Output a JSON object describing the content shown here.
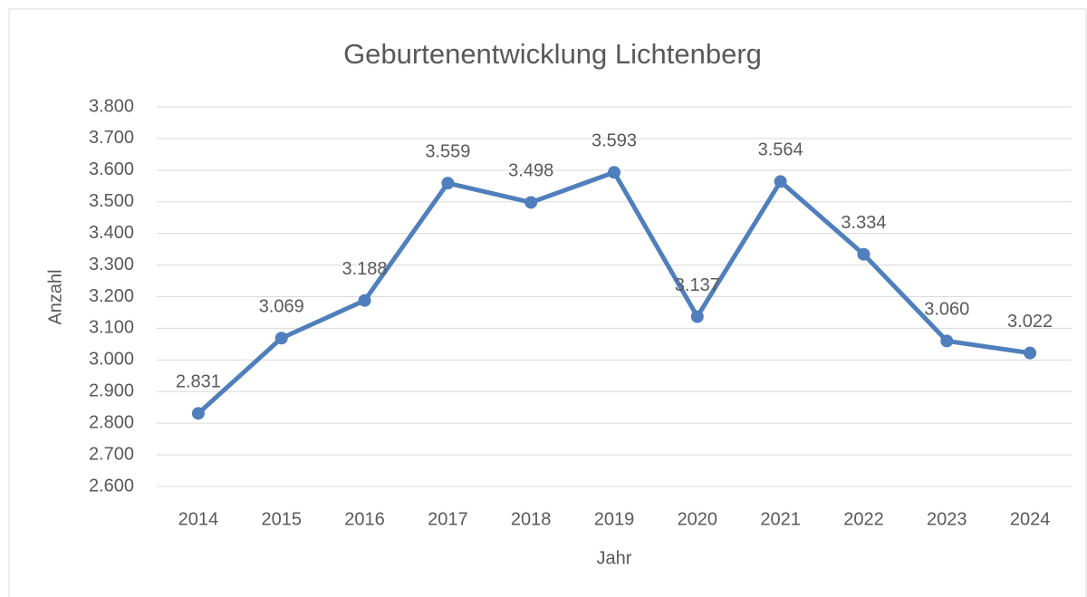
{
  "chart_data": {
    "type": "line",
    "title": "Geburtenentwicklung Lichtenberg",
    "x_label": "Jahr",
    "y_label": "Anzahl",
    "categories": [
      "2014",
      "2015",
      "2016",
      "2017",
      "2018",
      "2019",
      "2020",
      "2021",
      "2022",
      "2023",
      "2024"
    ],
    "series": [
      {
        "name": "Anzahl",
        "color": "#4f7fbc",
        "values": [
          2831,
          3069,
          3188,
          3559,
          3498,
          3593,
          3137,
          3564,
          3334,
          3060,
          3022
        ],
        "value_labels": [
          "2.831",
          "3.069",
          "3.188",
          "3.559",
          "3.498",
          "3.593",
          "3.137",
          "3.564",
          "3.334",
          "3.060",
          "3.022"
        ]
      }
    ],
    "ylim": [
      2600,
      3800
    ],
    "yticks": [
      {
        "value": 2600,
        "label": "2.600"
      },
      {
        "value": 2700,
        "label": "2.700"
      },
      {
        "value": 2800,
        "label": "2.800"
      },
      {
        "value": 2900,
        "label": "2.900"
      },
      {
        "value": 3000,
        "label": "3.000"
      },
      {
        "value": 3100,
        "label": "3.100"
      },
      {
        "value": 3200,
        "label": "3.200"
      },
      {
        "value": 3300,
        "label": "3.300"
      },
      {
        "value": 3400,
        "label": "3.400"
      },
      {
        "value": 3500,
        "label": "3.500"
      },
      {
        "value": 3600,
        "label": "3.600"
      },
      {
        "value": 3700,
        "label": "3.700"
      },
      {
        "value": 3800,
        "label": "3.800"
      }
    ],
    "grid": true
  }
}
